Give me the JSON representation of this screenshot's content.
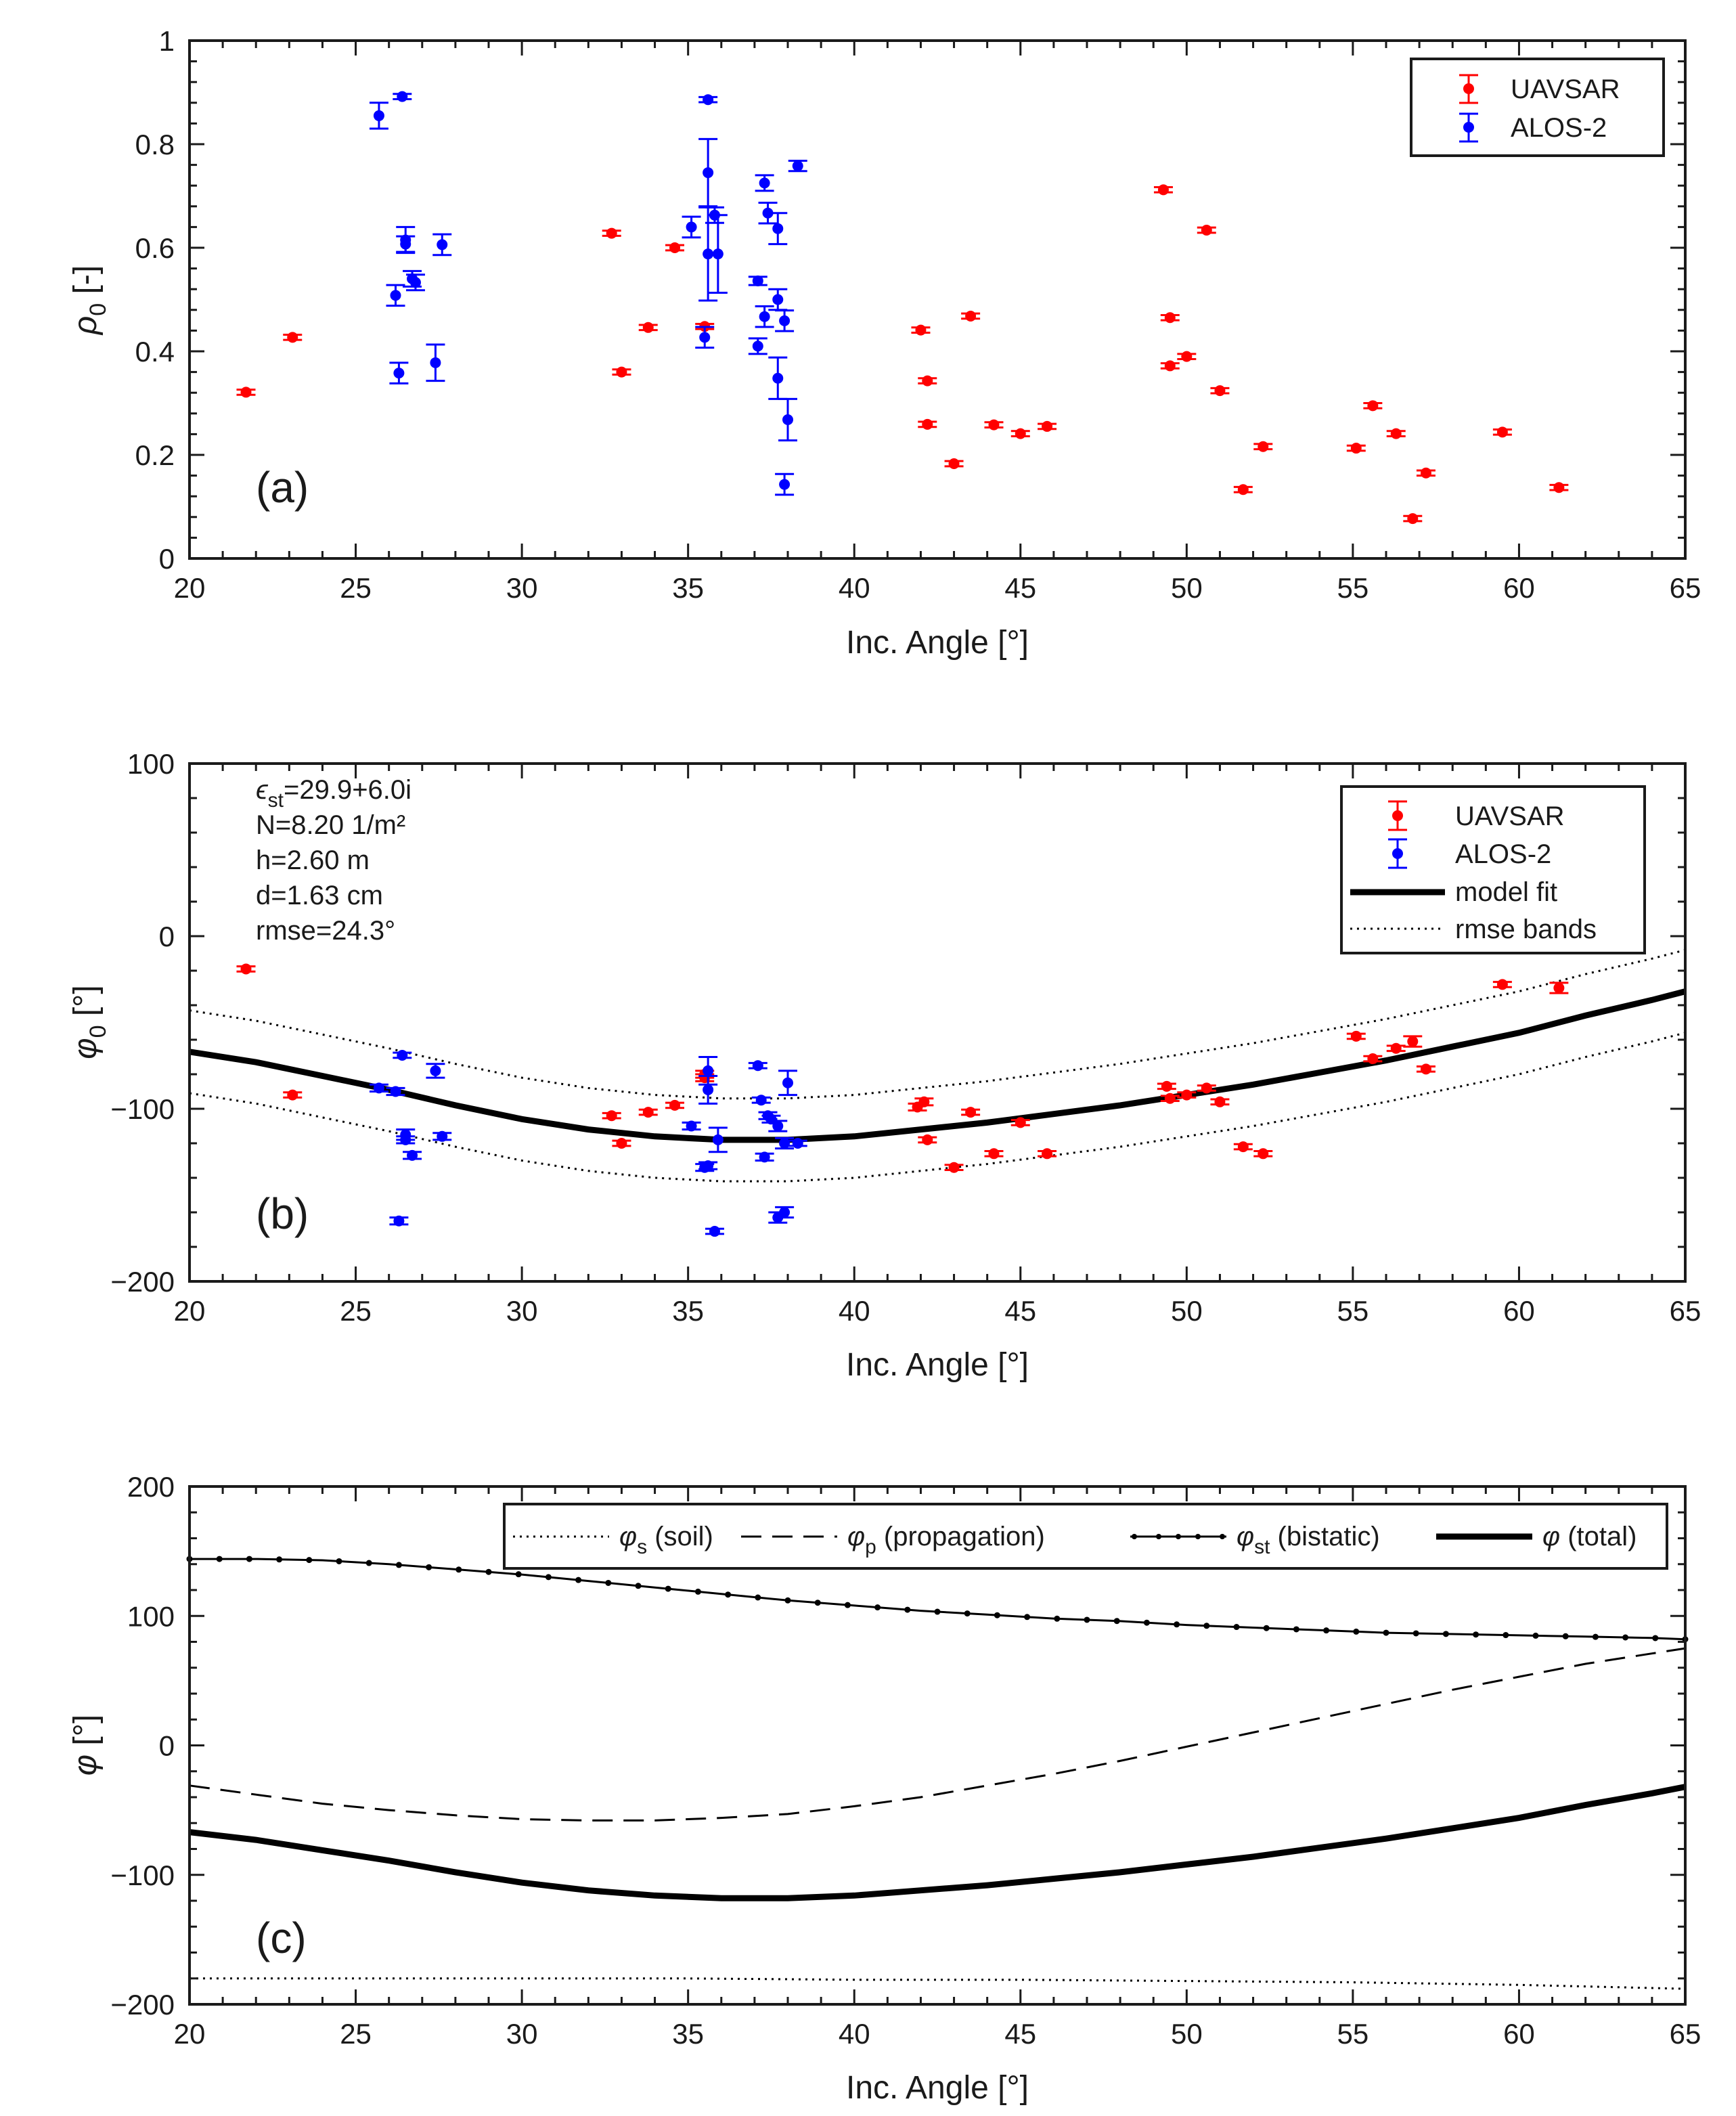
{
  "colors": {
    "uavsar": "#ff0000",
    "alos2": "#0000ff",
    "axis": "#1a1a1a"
  },
  "chart_data": [
    {
      "type": "scatter",
      "panel_label": "(a)",
      "xlabel": "Inc. Angle [°]",
      "ylabel_sym": "ρ",
      "ylabel_sub": "0",
      "ylabel_unit": " [-]",
      "xlim": [
        20,
        65
      ],
      "ylim": [
        0,
        1
      ],
      "xticks": [
        20,
        25,
        30,
        35,
        40,
        45,
        50,
        55,
        60,
        65
      ],
      "yticks": [
        0,
        0.2,
        0.4,
        0.6,
        0.8,
        1
      ],
      "ytick_labels": [
        "0",
        "0.2",
        "0.4",
        "0.6",
        "0.8",
        "1"
      ],
      "legend": [
        "UAVSAR",
        "ALOS-2"
      ],
      "series": [
        {
          "name": "UAVSAR",
          "points": [
            [
              21.7,
              0.321,
              0.005
            ],
            [
              23.1,
              0.427,
              0.005
            ],
            [
              32.7,
              0.628,
              0.005
            ],
            [
              33.0,
              0.36,
              0.005
            ],
            [
              33.8,
              0.446,
              0.005
            ],
            [
              34.6,
              0.6,
              0.005
            ],
            [
              35.5,
              0.448,
              0.005
            ],
            [
              42.0,
              0.441,
              0.005
            ],
            [
              42.2,
              0.343,
              0.005
            ],
            [
              42.2,
              0.259,
              0.005
            ],
            [
              43.0,
              0.183,
              0.005
            ],
            [
              43.5,
              0.468,
              0.005
            ],
            [
              44.2,
              0.258,
              0.005
            ],
            [
              45.0,
              0.241,
              0.005
            ],
            [
              45.8,
              0.255,
              0.005
            ],
            [
              49.3,
              0.712,
              0.005
            ],
            [
              49.5,
              0.465,
              0.005
            ],
            [
              49.5,
              0.372,
              0.005
            ],
            [
              50.0,
              0.39,
              0.005
            ],
            [
              50.6,
              0.634,
              0.005
            ],
            [
              51.0,
              0.324,
              0.005
            ],
            [
              51.7,
              0.133,
              0.005
            ],
            [
              52.3,
              0.216,
              0.005
            ],
            [
              55.1,
              0.213,
              0.005
            ],
            [
              55.6,
              0.295,
              0.005
            ],
            [
              56.3,
              0.241,
              0.005
            ],
            [
              56.8,
              0.077,
              0.005
            ],
            [
              57.2,
              0.165,
              0.005
            ],
            [
              59.5,
              0.244,
              0.005
            ],
            [
              61.2,
              0.137,
              0.005
            ]
          ]
        },
        {
          "name": "ALOS-2",
          "points": [
            [
              25.7,
              0.855,
              0.025
            ],
            [
              26.2,
              0.508,
              0.02
            ],
            [
              26.3,
              0.358,
              0.02
            ],
            [
              26.4,
              0.892,
              0.005
            ],
            [
              26.5,
              0.615,
              0.025
            ],
            [
              26.5,
              0.607,
              0.015
            ],
            [
              26.7,
              0.54,
              0.015
            ],
            [
              26.8,
              0.533,
              0.015
            ],
            [
              27.4,
              0.378,
              0.035
            ],
            [
              27.6,
              0.606,
              0.02
            ],
            [
              35.1,
              0.64,
              0.02
            ],
            [
              35.5,
              0.427,
              0.02
            ],
            [
              35.6,
              0.745,
              0.065
            ],
            [
              35.6,
              0.588,
              0.09
            ],
            [
              35.6,
              0.886,
              0.005
            ],
            [
              35.8,
              0.663,
              0.015
            ],
            [
              35.9,
              0.588,
              0.075
            ],
            [
              37.1,
              0.536,
              0.008
            ],
            [
              37.1,
              0.41,
              0.015
            ],
            [
              37.3,
              0.725,
              0.015
            ],
            [
              37.3,
              0.467,
              0.02
            ],
            [
              37.4,
              0.667,
              0.02
            ],
            [
              37.7,
              0.637,
              0.03
            ],
            [
              37.7,
              0.5,
              0.02
            ],
            [
              37.7,
              0.348,
              0.04
            ],
            [
              37.9,
              0.459,
              0.02
            ],
            [
              37.9,
              0.143,
              0.02
            ],
            [
              38.0,
              0.268,
              0.04
            ],
            [
              38.3,
              0.758,
              0.01
            ]
          ]
        }
      ]
    },
    {
      "type": "scatter",
      "panel_label": "(b)",
      "xlabel": "Inc. Angle [°]",
      "ylabel_sym": "φ",
      "ylabel_sub": "0",
      "ylabel_unit": " [°]",
      "xlim": [
        20,
        65
      ],
      "ylim": [
        -200,
        100
      ],
      "xticks": [
        20,
        25,
        30,
        35,
        40,
        45,
        50,
        55,
        60,
        65
      ],
      "yticks": [
        -200,
        -100,
        0,
        100
      ],
      "ytick_labels": [
        "−200",
        "−100",
        "0",
        "100"
      ],
      "annotations": {
        "eps_sym": "ϵ",
        "eps_sub": "st",
        "eps_value": "=29.9+6.0i",
        "n_line": "N=8.20 1/m²",
        "h_line": "h=2.60 m",
        "d_line": "d=1.63 cm",
        "rmse_line": "rmse=24.3°"
      },
      "legend": [
        "UAVSAR",
        "ALOS-2",
        "model fit",
        "rmse bands"
      ],
      "series": [
        {
          "name": "UAVSAR",
          "points": [
            [
              21.7,
              -19,
              1.5
            ],
            [
              23.1,
              -92,
              1.5
            ],
            [
              32.7,
              -104,
              1.5
            ],
            [
              33.0,
              -120,
              1.5
            ],
            [
              33.8,
              -102,
              1.5
            ],
            [
              34.6,
              -98,
              1.5
            ],
            [
              35.5,
              -80,
              2
            ],
            [
              35.5,
              -82,
              2
            ],
            [
              41.9,
              -99,
              2
            ],
            [
              42.1,
              -96,
              2
            ],
            [
              42.2,
              -118,
              1.5
            ],
            [
              43.0,
              -134,
              1.5
            ],
            [
              43.5,
              -102,
              1.5
            ],
            [
              44.2,
              -126,
              1.5
            ],
            [
              45.0,
              -108,
              1.5
            ],
            [
              45.8,
              -126,
              1.5
            ],
            [
              49.4,
              -87,
              1.5
            ],
            [
              49.5,
              -94,
              1.5
            ],
            [
              50.0,
              -92,
              1.5
            ],
            [
              50.6,
              -88,
              1.5
            ],
            [
              51.0,
              -96,
              1.5
            ],
            [
              51.7,
              -122,
              1.5
            ],
            [
              52.3,
              -126,
              1.5
            ],
            [
              55.1,
              -58,
              1.5
            ],
            [
              55.6,
              -71,
              1.5
            ],
            [
              56.3,
              -65,
              1.5
            ],
            [
              56.8,
              -61,
              3
            ],
            [
              57.2,
              -77,
              1.5
            ],
            [
              59.5,
              -28,
              1.5
            ],
            [
              61.2,
              -30,
              3
            ]
          ]
        },
        {
          "name": "ALOS-2",
          "points": [
            [
              25.7,
              -88,
              2
            ],
            [
              26.2,
              -90,
              2
            ],
            [
              26.3,
              -165,
              2
            ],
            [
              26.4,
              -69,
              1.5
            ],
            [
              26.5,
              -115,
              3
            ],
            [
              26.5,
              -118,
              2
            ],
            [
              26.7,
              -127,
              2
            ],
            [
              27.4,
              -78,
              4
            ],
            [
              27.6,
              -116,
              2
            ],
            [
              35.1,
              -110,
              2
            ],
            [
              35.5,
              -134,
              2
            ],
            [
              35.6,
              -133,
              2
            ],
            [
              35.6,
              -89,
              8
            ],
            [
              35.6,
              -78,
              8
            ],
            [
              35.8,
              -171,
              1.5
            ],
            [
              35.9,
              -118,
              7
            ],
            [
              37.1,
              -75,
              1.5
            ],
            [
              37.2,
              -95,
              1.5
            ],
            [
              37.3,
              -128,
              2
            ],
            [
              37.4,
              -104,
              2
            ],
            [
              37.5,
              -106,
              2
            ],
            [
              37.7,
              -110,
              3
            ],
            [
              37.7,
              -163,
              3
            ],
            [
              37.9,
              -160,
              3
            ],
            [
              37.9,
              -120,
              3
            ],
            [
              38.0,
              -85,
              7
            ],
            [
              38.3,
              -120,
              1.5
            ]
          ]
        },
        {
          "name": "model fit",
          "x": [
            20,
            22,
            24,
            26,
            28,
            30,
            32,
            34,
            36,
            38,
            40,
            42,
            44,
            46,
            48,
            50,
            52,
            54,
            56,
            58,
            60,
            62,
            64,
            65
          ],
          "y": [
            -67,
            -73,
            -81,
            -89,
            -98,
            -106,
            -112,
            -116,
            -118,
            -118,
            -116,
            -112,
            -108,
            -103,
            -98,
            -92,
            -86,
            -79,
            -72,
            -64,
            -56,
            -46,
            -37,
            -32
          ]
        },
        {
          "name": "rmse bands",
          "x": [
            20,
            22,
            24,
            26,
            28,
            30,
            32,
            34,
            36,
            38,
            40,
            42,
            44,
            46,
            48,
            50,
            52,
            54,
            56,
            58,
            60,
            62,
            64,
            65
          ],
          "upper": [
            -43,
            -49,
            -57,
            -65,
            -74,
            -82,
            -88,
            -92,
            -94,
            -94,
            -92,
            -88,
            -84,
            -79,
            -74,
            -68,
            -62,
            -55,
            -48,
            -40,
            -32,
            -22,
            -13,
            -8
          ],
          "lower": [
            -91,
            -97,
            -105,
            -113,
            -122,
            -130,
            -136,
            -140,
            -142,
            -142,
            -140,
            -136,
            -132,
            -127,
            -122,
            -116,
            -110,
            -103,
            -96,
            -88,
            -80,
            -70,
            -61,
            -56
          ]
        }
      ]
    },
    {
      "type": "line",
      "panel_label": "(c)",
      "xlabel": "Inc. Angle [°]",
      "ylabel_sym": "φ",
      "ylabel_sub": "",
      "ylabel_unit": " [°]",
      "xlim": [
        20,
        65
      ],
      "ylim": [
        -200,
        200
      ],
      "xticks": [
        20,
        25,
        30,
        35,
        40,
        45,
        50,
        55,
        60,
        65
      ],
      "yticks": [
        -200,
        -100,
        0,
        100,
        200
      ],
      "ytick_labels": [
        "−200",
        "−100",
        "0",
        "100",
        "200"
      ],
      "legend": [
        {
          "sym": "φ",
          "sub": "s",
          "text": " (soil)"
        },
        {
          "sym": "φ",
          "sub": "p",
          "text": " (propagation)"
        },
        {
          "sym": "φ",
          "sub": "st",
          "text": " (bistatic)"
        },
        {
          "sym": "φ",
          "sub": "",
          "text": " (total)"
        }
      ],
      "series": [
        {
          "name": "soil",
          "x": [
            20,
            25,
            30,
            35,
            40,
            45,
            50,
            55,
            60,
            65
          ],
          "y": [
            -180,
            -180,
            -180,
            -180,
            -181,
            -181,
            -182,
            -183,
            -185,
            -188
          ]
        },
        {
          "name": "propagation",
          "x": [
            20,
            22,
            24,
            26,
            28,
            30,
            32,
            34,
            36,
            38,
            40,
            42,
            44,
            46,
            48,
            50,
            52,
            54,
            56,
            58,
            60,
            62,
            64,
            65
          ],
          "y": [
            -31,
            -38,
            -45,
            -50,
            -54,
            -57,
            -58,
            -58,
            -56,
            -53,
            -47,
            -40,
            -31,
            -22,
            -12,
            -1,
            10,
            21,
            32,
            43,
            53,
            63,
            71,
            75
          ]
        },
        {
          "name": "bistatic",
          "x": [
            20,
            22,
            24,
            26,
            28,
            30,
            32,
            34,
            36,
            38,
            40,
            42,
            44,
            46,
            48,
            50,
            52,
            54,
            56,
            58,
            60,
            62,
            64,
            65
          ],
          "y": [
            144,
            144,
            143,
            140,
            136,
            132,
            127,
            122,
            117,
            112,
            108,
            104,
            101,
            98,
            96,
            93,
            91,
            89,
            87,
            86,
            85,
            84,
            83,
            82
          ]
        },
        {
          "name": "total",
          "x": [
            20,
            22,
            24,
            26,
            28,
            30,
            32,
            34,
            36,
            38,
            40,
            42,
            44,
            46,
            48,
            50,
            52,
            54,
            56,
            58,
            60,
            62,
            64,
            65
          ],
          "y": [
            -67,
            -73,
            -81,
            -89,
            -98,
            -106,
            -112,
            -116,
            -118,
            -118,
            -116,
            -112,
            -108,
            -103,
            -98,
            -92,
            -86,
            -79,
            -72,
            -64,
            -56,
            -46,
            -37,
            -32
          ]
        }
      ]
    }
  ]
}
